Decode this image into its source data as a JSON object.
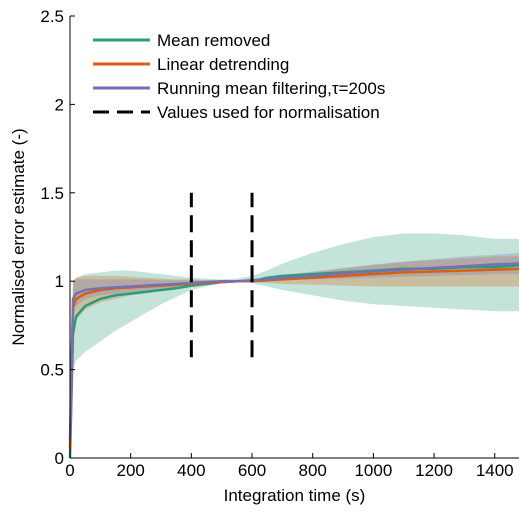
{
  "chart_data": {
    "type": "line",
    "xlabel": "Integration time (s)",
    "ylabel": "Normalised error estimate (-)",
    "xlim": [
      0,
      1480
    ],
    "ylim": [
      0,
      2.5
    ],
    "xticks": [
      0,
      200,
      400,
      600,
      800,
      1000,
      1200,
      1400
    ],
    "yticks": [
      0,
      0.5,
      1,
      1.5,
      2,
      2.5
    ],
    "ytick_labels": [
      "0",
      "0.5",
      "1",
      "1.5",
      "2",
      "2.5"
    ],
    "grid": false,
    "legend_position": "top-left",
    "colors": {
      "mean_removed": "#2a9d78",
      "linear_detrending": "#d95f0e",
      "running_mean": "#7570b3",
      "normalisation": "#000000"
    },
    "series": [
      {
        "name": "Mean removed",
        "key": "mean_removed",
        "x": [
          0,
          10,
          20,
          50,
          100,
          150,
          200,
          250,
          300,
          350,
          400,
          450,
          500,
          550,
          600,
          650,
          700,
          800,
          900,
          1000,
          1100,
          1200,
          1300,
          1400,
          1480
        ],
        "y": [
          0.0,
          0.7,
          0.8,
          0.86,
          0.9,
          0.92,
          0.93,
          0.94,
          0.95,
          0.96,
          0.975,
          0.985,
          0.995,
          1.0,
          1.0,
          1.02,
          1.03,
          1.04,
          1.05,
          1.06,
          1.07,
          1.07,
          1.08,
          1.08,
          1.09
        ],
        "band_upper": [
          0.05,
          1.0,
          1.02,
          1.04,
          1.05,
          1.06,
          1.06,
          1.05,
          1.04,
          1.03,
          1.02,
          1.015,
          1.01,
          1.015,
          1.03,
          1.06,
          1.1,
          1.16,
          1.21,
          1.25,
          1.27,
          1.27,
          1.26,
          1.24,
          1.24
        ],
        "band_lower": [
          0.0,
          0.5,
          0.55,
          0.6,
          0.66,
          0.72,
          0.77,
          0.82,
          0.87,
          0.91,
          0.95,
          0.97,
          0.99,
          1.0,
          0.99,
          0.97,
          0.95,
          0.92,
          0.89,
          0.87,
          0.86,
          0.85,
          0.84,
          0.83,
          0.83
        ]
      },
      {
        "name": "Linear detrending",
        "key": "linear_detrending",
        "x": [
          0,
          10,
          20,
          50,
          100,
          150,
          200,
          250,
          300,
          350,
          400,
          450,
          500,
          550,
          600,
          650,
          700,
          800,
          900,
          1000,
          1100,
          1200,
          1300,
          1400,
          1480
        ],
        "y": [
          0.05,
          0.85,
          0.9,
          0.93,
          0.95,
          0.96,
          0.965,
          0.97,
          0.975,
          0.98,
          0.985,
          0.99,
          0.995,
          1.0,
          1.0,
          1.005,
          1.01,
          1.02,
          1.03,
          1.04,
          1.05,
          1.055,
          1.06,
          1.065,
          1.07
        ],
        "band_upper": [
          0.1,
          1.0,
          1.02,
          1.03,
          1.03,
          1.03,
          1.025,
          1.02,
          1.015,
          1.01,
          1.01,
          1.005,
          1.005,
          1.005,
          1.01,
          1.02,
          1.03,
          1.05,
          1.07,
          1.09,
          1.11,
          1.12,
          1.13,
          1.14,
          1.14
        ],
        "band_lower": [
          0.0,
          0.7,
          0.78,
          0.84,
          0.88,
          0.9,
          0.92,
          0.93,
          0.945,
          0.96,
          0.97,
          0.98,
          0.99,
          1.0,
          0.995,
          0.99,
          0.985,
          0.98,
          0.975,
          0.97,
          0.97,
          0.97,
          0.97,
          0.97,
          0.97
        ]
      },
      {
        "name": "Running mean filtering,τ=200s",
        "key": "running_mean",
        "x": [
          0,
          10,
          20,
          50,
          100,
          150,
          200,
          250,
          300,
          350,
          400,
          450,
          500,
          550,
          600,
          650,
          700,
          800,
          900,
          1000,
          1100,
          1200,
          1300,
          1400,
          1480
        ],
        "y": [
          0.1,
          0.9,
          0.93,
          0.95,
          0.96,
          0.965,
          0.97,
          0.975,
          0.98,
          0.985,
          0.99,
          0.995,
          1.0,
          1.0,
          1.005,
          1.01,
          1.02,
          1.03,
          1.045,
          1.055,
          1.065,
          1.075,
          1.085,
          1.095,
          1.1
        ],
        "band_upper": [
          0.15,
          1.0,
          1.01,
          1.01,
          1.01,
          1.01,
          1.01,
          1.01,
          1.005,
          1.005,
          1.005,
          1.005,
          1.005,
          1.005,
          1.01,
          1.02,
          1.035,
          1.055,
          1.075,
          1.095,
          1.11,
          1.125,
          1.14,
          1.15,
          1.16
        ],
        "band_lower": [
          0.05,
          0.8,
          0.86,
          0.9,
          0.92,
          0.93,
          0.94,
          0.95,
          0.96,
          0.965,
          0.975,
          0.985,
          0.995,
          1.0,
          1.0,
          1.0,
          1.005,
          1.01,
          1.015,
          1.02,
          1.025,
          1.03,
          1.035,
          1.04,
          1.04
        ]
      }
    ],
    "vlines": [
      {
        "name": "Values used for normalisation",
        "x": [
          400,
          600
        ],
        "y_range": [
          0.57,
          1.5
        ],
        "style": "dashed"
      }
    ],
    "legend": [
      {
        "label": "Mean removed",
        "key": "mean_removed",
        "style": "solid"
      },
      {
        "label": "Linear detrending",
        "key": "linear_detrending",
        "style": "solid"
      },
      {
        "label": "Running mean filtering,τ=200s",
        "key": "running_mean",
        "style": "solid"
      },
      {
        "label": "Values used for normalisation",
        "key": "normalisation",
        "style": "dashed"
      }
    ]
  }
}
